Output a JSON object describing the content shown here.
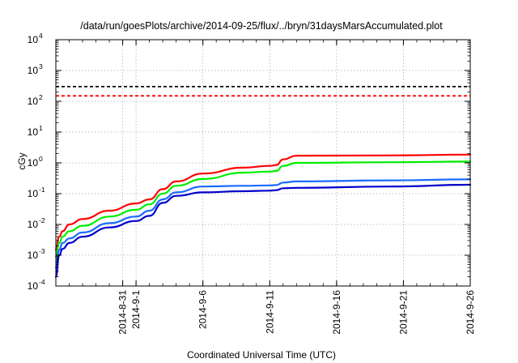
{
  "chart_data": {
    "type": "line",
    "title": "/data/run/goesPlots/archive/2014-09-25/flux/../bryn/31daysMarsAccumulated.plot",
    "xlabel": "Coordinated Universal Time (UTC)",
    "ylabel": "cGy",
    "y_scale": "log",
    "ylim": [
      0.0001,
      10000
    ],
    "y_ticks": [
      {
        "base": "10",
        "exp": "-4"
      },
      {
        "base": "10",
        "exp": "-3"
      },
      {
        "base": "10",
        "exp": "-2"
      },
      {
        "base": "10",
        "exp": "-1"
      },
      {
        "base": "10",
        "exp": "0"
      },
      {
        "base": "10",
        "exp": "1"
      },
      {
        "base": "10",
        "exp": "2"
      },
      {
        "base": "10",
        "exp": "3"
      },
      {
        "base": "10",
        "exp": "4"
      }
    ],
    "xlim": [
      "2014-08-26",
      "2014-09-26"
    ],
    "x_ticks": [
      "2014-8-31",
      "2014-9-1",
      "2014-9-6",
      "2014-9-11",
      "2014-9-16",
      "2014-9-21",
      "2014-9-26"
    ],
    "grid": true,
    "reference_lines": [
      {
        "y": 300,
        "color": "#000000",
        "style": "dashed"
      },
      {
        "y": 150,
        "color": "#ff0000",
        "style": "dashed"
      }
    ],
    "series": [
      {
        "color": "#ff0000",
        "x": [
          "2014-08-26",
          "2014-08-26T06",
          "2014-08-26T12",
          "2014-08-27",
          "2014-08-28",
          "2014-08-30",
          "2014-09-01",
          "2014-09-02",
          "2014-09-03",
          "2014-09-04",
          "2014-09-06",
          "2014-09-09",
          "2014-09-11",
          "2014-09-11T12",
          "2014-09-12",
          "2014-09-13",
          "2014-09-20",
          "2014-09-26"
        ],
        "y": [
          0.0015,
          0.004,
          0.006,
          0.01,
          0.015,
          0.028,
          0.048,
          0.065,
          0.14,
          0.25,
          0.45,
          0.7,
          0.8,
          0.85,
          1.3,
          1.7,
          1.75,
          1.85
        ]
      },
      {
        "color": "#00ee00",
        "x": [
          "2014-08-26",
          "2014-08-26T06",
          "2014-08-26T12",
          "2014-08-27",
          "2014-08-28",
          "2014-08-30",
          "2014-09-01",
          "2014-09-02",
          "2014-09-03",
          "2014-09-04",
          "2014-09-06",
          "2014-09-09",
          "2014-09-11",
          "2014-09-11T12",
          "2014-09-12",
          "2014-09-13",
          "2014-09-20",
          "2014-09-26"
        ],
        "y": [
          0.0009,
          0.0025,
          0.004,
          0.006,
          0.009,
          0.018,
          0.03,
          0.045,
          0.1,
          0.18,
          0.3,
          0.48,
          0.52,
          0.55,
          0.8,
          1.0,
          1.05,
          1.1
        ]
      },
      {
        "color": "#1a6aff",
        "x": [
          "2014-08-26",
          "2014-08-26T06",
          "2014-08-26T12",
          "2014-08-27",
          "2014-08-28",
          "2014-08-30",
          "2014-09-01",
          "2014-09-02",
          "2014-09-03",
          "2014-09-04",
          "2014-09-06",
          "2014-09-09",
          "2014-09-11",
          "2014-09-11T12",
          "2014-09-12",
          "2014-09-13",
          "2014-09-20",
          "2014-09-26"
        ],
        "y": [
          0.0004,
          0.0015,
          0.0025,
          0.0035,
          0.0055,
          0.011,
          0.018,
          0.028,
          0.065,
          0.11,
          0.17,
          0.18,
          0.185,
          0.19,
          0.23,
          0.25,
          0.27,
          0.29
        ]
      },
      {
        "color": "#0000cc",
        "x": [
          "2014-08-26",
          "2014-08-26T06",
          "2014-08-26T12",
          "2014-08-27",
          "2014-08-28",
          "2014-08-30",
          "2014-09-01",
          "2014-09-02",
          "2014-09-03",
          "2014-09-04",
          "2014-09-06",
          "2014-09-09",
          "2014-09-11",
          "2014-09-11T12",
          "2014-09-12",
          "2014-09-13",
          "2014-09-20",
          "2014-09-26"
        ],
        "y": [
          0.0002,
          0.001,
          0.0016,
          0.0025,
          0.004,
          0.008,
          0.013,
          0.019,
          0.05,
          0.085,
          0.11,
          0.12,
          0.125,
          0.13,
          0.15,
          0.155,
          0.17,
          0.195
        ]
      }
    ]
  }
}
